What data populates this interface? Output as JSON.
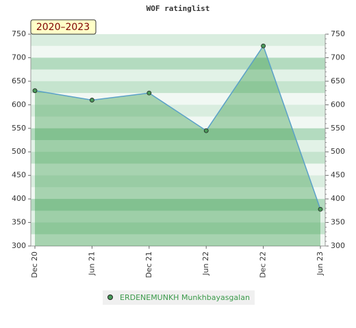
{
  "chart_data": {
    "type": "area",
    "title": "WOF ratinglist",
    "annotation": "2020–2023",
    "categories": [
      "Dec 20",
      "Jun 21",
      "Dec 21",
      "Jun 22",
      "Dec 22",
      "Jun 23"
    ],
    "series": [
      {
        "name": "ERDENEMUNKH Munkhbayasgalan",
        "color": "#3a9a4a",
        "values": [
          630,
          610,
          625,
          545,
          725,
          378
        ]
      }
    ],
    "ylim": [
      300,
      750
    ],
    "yticks": [
      300,
      350,
      400,
      450,
      500,
      550,
      600,
      650,
      700,
      750
    ],
    "y2lim": [
      300,
      750
    ],
    "y2ticks": [
      300,
      350,
      400,
      450,
      500,
      550,
      600,
      650,
      700,
      750
    ]
  }
}
